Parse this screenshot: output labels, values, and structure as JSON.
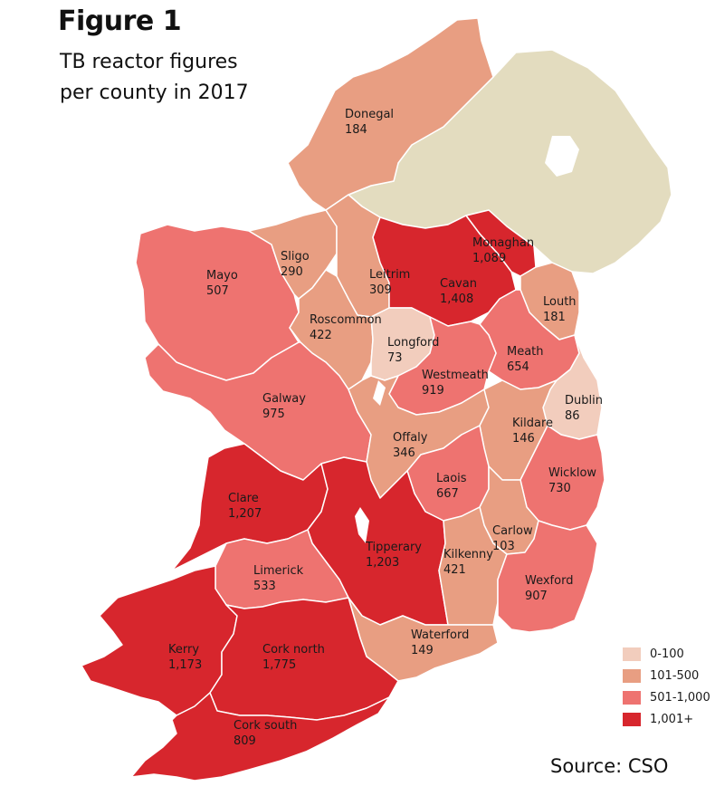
{
  "title": {
    "figure_label": "Figure 1",
    "line1": "TB reactor figures",
    "line2": "per county in 2017"
  },
  "source": "Source: CSO",
  "colors": {
    "band_0_100": "#f2cdbd",
    "band_101_500": "#e89e82",
    "band_501_1000": "#ee7370",
    "band_1001_plus": "#d7262d",
    "northern_ireland": "#e3dcbf",
    "border": "#ffffff"
  },
  "legend": [
    {
      "label": "0-100",
      "color": "#f2cdbd"
    },
    {
      "label": "101-500",
      "color": "#e89e82"
    },
    {
      "label": "501-1,000",
      "color": "#ee7370"
    },
    {
      "label": "1,001+",
      "color": "#d7262d"
    }
  ],
  "counties": [
    {
      "id": "donegal",
      "name": "Donegal",
      "value": "184",
      "band": "101-500"
    },
    {
      "id": "sligo",
      "name": "Sligo",
      "value": "290",
      "band": "101-500"
    },
    {
      "id": "mayo",
      "name": "Mayo",
      "value": "507",
      "band": "501-1,000"
    },
    {
      "id": "leitrim",
      "name": "Leitrim",
      "value": "309",
      "band": "101-500"
    },
    {
      "id": "monaghan",
      "name": "Monaghan",
      "value": "1,089",
      "band": "1,001+"
    },
    {
      "id": "cavan",
      "name": "Cavan",
      "value": "1,408",
      "band": "1,001+"
    },
    {
      "id": "louth",
      "name": "Louth",
      "value": "181",
      "band": "101-500"
    },
    {
      "id": "roscommon",
      "name": "Roscommon",
      "value": "422",
      "band": "101-500"
    },
    {
      "id": "longford",
      "name": "Longford",
      "value": "73",
      "band": "0-100"
    },
    {
      "id": "meath",
      "name": "Meath",
      "value": "654",
      "band": "501-1,000"
    },
    {
      "id": "westmeath",
      "name": "Westmeath",
      "value": "919",
      "band": "501-1,000"
    },
    {
      "id": "dublin",
      "name": "Dublin",
      "value": "86",
      "band": "0-100"
    },
    {
      "id": "galway",
      "name": "Galway",
      "value": "975",
      "band": "501-1,000"
    },
    {
      "id": "offaly",
      "name": "Offaly",
      "value": "346",
      "band": "101-500"
    },
    {
      "id": "kildare",
      "name": "Kildare",
      "value": "146",
      "band": "101-500"
    },
    {
      "id": "laois",
      "name": "Laois",
      "value": "667",
      "band": "501-1,000"
    },
    {
      "id": "wicklow",
      "name": "Wicklow",
      "value": "730",
      "band": "501-1,000"
    },
    {
      "id": "clare",
      "name": "Clare",
      "value": "1,207",
      "band": "1,001+"
    },
    {
      "id": "carlow",
      "name": "Carlow",
      "value": "103",
      "band": "101-500"
    },
    {
      "id": "tipperary",
      "name": "Tipperary",
      "value": "1,203",
      "band": "1,001+"
    },
    {
      "id": "kilkenny",
      "name": "Kilkenny",
      "value": "421",
      "band": "101-500"
    },
    {
      "id": "limerick",
      "name": "Limerick",
      "value": "533",
      "band": "501-1,000"
    },
    {
      "id": "wexford",
      "name": "Wexford",
      "value": "907",
      "band": "501-1,000"
    },
    {
      "id": "waterford",
      "name": "Waterford",
      "value": "149",
      "band": "101-500"
    },
    {
      "id": "kerry",
      "name": "Kerry",
      "value": "1,173",
      "band": "1,001+"
    },
    {
      "id": "cork_north",
      "name": "Cork north",
      "value": "1,775",
      "band": "1,001+"
    },
    {
      "id": "cork_south",
      "name": "Cork south",
      "value": "809",
      "band": "501-1,000"
    }
  ]
}
